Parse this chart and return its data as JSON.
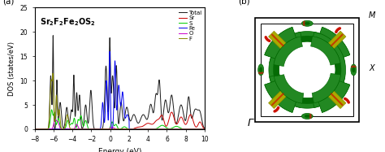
{
  "xlabel": "Energy (eV)",
  "ylabel": "DOS (states/eV)",
  "xlim": [
    -8,
    10
  ],
  "ylim": [
    0,
    25
  ],
  "yticks": [
    0,
    5,
    10,
    15,
    20,
    25
  ],
  "xticks": [
    -8,
    -6,
    -4,
    -2,
    0,
    2,
    4,
    6,
    8,
    10
  ],
  "panel_a_label": "(a)",
  "panel_b_label": "(b)",
  "legend_labels": [
    "Total",
    "Sr",
    "S",
    "Fe",
    "O",
    "F"
  ],
  "legend_colors": [
    "#1a1a1a",
    "#cc0000",
    "#00cc00",
    "#0000ee",
    "#cc00cc",
    "#888800"
  ],
  "gamma_label": "Γ",
  "M_label": "M",
  "X_label": "X",
  "bg_color": "#ffffff"
}
